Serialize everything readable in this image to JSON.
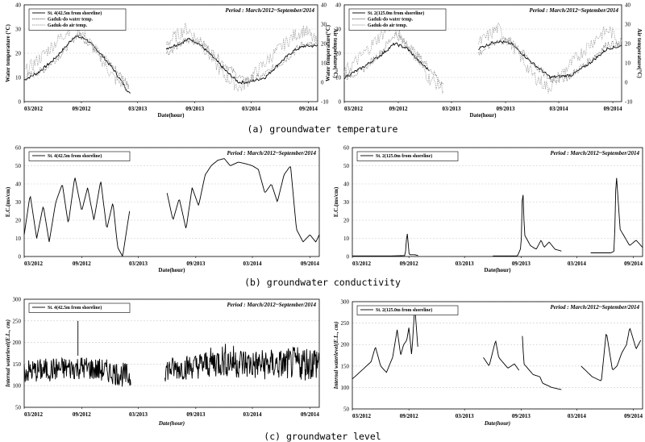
{
  "captions": [
    "(a) groundwater temperature",
    "(b) groundwater conductivity",
    "(c) groundwater level"
  ],
  "chart_data": [
    {
      "type": "line",
      "period_text": "Period : March/2012~September/2014",
      "xlabel": "Date(hour)",
      "ylabel": "Water temperature (°C)",
      "ylabel_right": "Air temperature(°C)",
      "x_ticks": [
        "03/2012",
        "09/2012",
        "03/2013",
        "09/2013",
        "03/2014",
        "09/2014"
      ],
      "ylim": [
        0,
        40
      ],
      "y_ticks": [
        0,
        10,
        20,
        30,
        40
      ],
      "ylim_right": [
        -10,
        40
      ],
      "y_ticks_right": [
        -10,
        0,
        10,
        20,
        30,
        40
      ],
      "grid": true,
      "legend": "top-left",
      "series": [
        {
          "name": "St. 4(42.5m from shoreline)",
          "style": "solid",
          "axis": "left",
          "segments": [
            {
              "x": [
                "2012-03-01",
                "2012-04-15",
                "2012-06-01",
                "2012-07-15",
                "2012-08-10",
                "2012-09-15",
                "2012-11-01",
                "2012-12-15",
                "2013-01-15",
                "2013-02-05"
              ],
              "y": [
                9,
                12,
                17,
                23,
                27,
                26,
                20,
                13,
                7,
                3
              ]
            },
            {
              "x": [
                "2013-06-01",
                "2013-07-15",
                "2013-08-15",
                "2013-09-15",
                "2013-11-01",
                "2013-12-15",
                "2014-01-20",
                "2014-02-20",
                "2014-04-15",
                "2014-06-01",
                "2014-07-15",
                "2014-08-20",
                "2014-10-01"
              ],
              "y": [
                22,
                24,
                26,
                24,
                18,
                12,
                8,
                8,
                10,
                16,
                21,
                23,
                23
              ]
            }
          ]
        },
        {
          "name": "Gaduk-do water temp.",
          "style": "dotted",
          "axis": "left",
          "segments": [
            {
              "x": [
                "2012-03-01",
                "2012-05-01",
                "2012-07-01",
                "2012-08-20",
                "2012-10-15",
                "2012-12-15",
                "2013-02-01"
              ],
              "y": [
                10,
                13,
                20,
                28,
                22,
                14,
                7
              ]
            },
            {
              "x": [
                "2013-06-01",
                "2013-08-01",
                "2013-09-20",
                "2013-12-01",
                "2014-02-01",
                "2014-04-01",
                "2014-06-15",
                "2014-08-15",
                "2014-10-01"
              ],
              "y": [
                20,
                25,
                25,
                16,
                9,
                10,
                17,
                24,
                23
              ]
            }
          ]
        },
        {
          "name": "Gaduk-do air temp.",
          "style": "dotted",
          "axis": "right",
          "segments": [
            {
              "x": [
                "2012-03-01",
                "2012-05-01",
                "2012-07-01",
                "2012-08-10",
                "2012-10-15",
                "2012-12-15",
                "2013-02-01"
              ],
              "y": [
                5,
                14,
                24,
                30,
                17,
                2,
                -3
              ]
            },
            {
              "x": [
                "2013-06-01",
                "2013-08-05",
                "2013-10-01",
                "2013-12-01",
                "2014-01-25",
                "2014-03-15",
                "2014-05-15",
                "2014-07-15",
                "2014-08-20",
                "2014-10-01"
              ],
              "y": [
                20,
                28,
                18,
                4,
                -3,
                5,
                15,
                24,
                27,
                20
              ]
            }
          ]
        }
      ]
    },
    {
      "type": "line",
      "period_text": "Period : March/2012~September/2014",
      "xlabel": "Date(hour)",
      "ylabel": "Water temperature(°C)",
      "ylabel_right": "Air temperature(°C)",
      "x_ticks": [
        "03/2012",
        "09/2012",
        "03/2013",
        "09/2013",
        "03/2014",
        "09/2014"
      ],
      "ylim": [
        0,
        40
      ],
      "y_ticks": [
        0,
        10,
        20,
        30,
        40
      ],
      "ylim_right": [
        -10,
        40
      ],
      "y_ticks_right": [
        -10,
        0,
        10,
        20,
        30,
        40
      ],
      "grid": true,
      "legend": "top-left",
      "series": [
        {
          "name": "St. 2(125.0m from shoreline)",
          "style": "solid",
          "axis": "left",
          "segments": [
            {
              "x": [
                "2012-03-01",
                "2012-05-01",
                "2012-07-01",
                "2012-08-20",
                "2012-10-01",
                "2012-11-15",
                "2012-12-15"
              ],
              "y": [
                10,
                14,
                19,
                24,
                22,
                16,
                13
              ]
            },
            {
              "x": [
                "2013-06-01",
                "2013-08-01",
                "2013-09-20",
                "2013-12-01",
                "2014-02-01",
                "2014-04-15",
                "2014-06-15",
                "2014-08-15",
                "2014-10-01"
              ],
              "y": [
                22,
                25,
                24,
                16,
                10,
                11,
                16,
                22,
                23
              ]
            }
          ]
        },
        {
          "name": "Gaduk-do water temp.",
          "style": "dotted",
          "axis": "left",
          "segments": [
            {
              "x": [
                "2012-03-01",
                "2012-05-01",
                "2012-07-01",
                "2012-08-20",
                "2012-10-15",
                "2012-12-15",
                "2013-02-01"
              ],
              "y": [
                10,
                13,
                20,
                28,
                22,
                14,
                7
              ]
            },
            {
              "x": [
                "2013-06-01",
                "2013-08-01",
                "2013-09-20",
                "2013-12-01",
                "2014-02-01",
                "2014-04-01",
                "2014-06-15",
                "2014-08-15",
                "2014-10-01"
              ],
              "y": [
                20,
                25,
                25,
                16,
                9,
                10,
                17,
                24,
                23
              ]
            }
          ]
        },
        {
          "name": "Gaduk-do air temp.",
          "style": "dotted",
          "axis": "right",
          "segments": [
            {
              "x": [
                "2012-03-01",
                "2012-05-01",
                "2012-07-01",
                "2012-08-10",
                "2012-10-15",
                "2012-12-15",
                "2013-02-01"
              ],
              "y": [
                5,
                14,
                24,
                30,
                17,
                2,
                -3
              ]
            },
            {
              "x": [
                "2013-06-01",
                "2013-08-05",
                "2013-10-01",
                "2013-12-01",
                "2014-01-25",
                "2014-03-15",
                "2014-05-15",
                "2014-07-15",
                "2014-08-20",
                "2014-10-01"
              ],
              "y": [
                20,
                28,
                18,
                4,
                -3,
                5,
                15,
                24,
                27,
                20
              ]
            }
          ]
        }
      ]
    },
    {
      "type": "line",
      "period_text": "Period : March/2012~September/2014",
      "xlabel": "Date(hour)",
      "ylabel": "E.C.(ms/cm)",
      "x_ticks": [
        "03/2012",
        "09/2012",
        "03/2013",
        "09/2013",
        "03/2014",
        "09/2014"
      ],
      "ylim": [
        0,
        60
      ],
      "y_ticks": [
        0,
        10,
        20,
        30,
        40,
        50,
        60
      ],
      "grid": true,
      "legend": "top-left",
      "series": [
        {
          "name": "St. 4(42.5m from shoreline)",
          "style": "solid",
          "segments": [
            {
              "x": [
                "2012-03-01",
                "2012-03-20",
                "2012-04-10",
                "2012-05-01",
                "2012-05-20",
                "2012-06-10",
                "2012-07-01",
                "2012-07-20",
                "2012-08-10",
                "2012-09-01",
                "2012-09-20",
                "2012-10-10",
                "2012-11-01",
                "2012-11-20",
                "2012-12-10",
                "2012-12-25",
                "2013-01-10",
                "2013-02-01"
              ],
              "y": [
                12,
                34,
                10,
                28,
                8,
                30,
                40,
                18,
                44,
                25,
                38,
                20,
                42,
                15,
                30,
                5,
                0,
                25
              ]
            },
            {
              "x": [
                "2013-06-01",
                "2013-06-20",
                "2013-07-10",
                "2013-08-01",
                "2013-08-20",
                "2013-09-10",
                "2013-10-01",
                "2013-10-20",
                "2013-11-10",
                "2013-12-01",
                "2013-12-20",
                "2014-01-15",
                "2014-02-10",
                "2014-03-01",
                "2014-03-20",
                "2014-04-10",
                "2014-05-01",
                "2014-05-20",
                "2014-06-10",
                "2014-07-01",
                "2014-07-20",
                "2014-08-10",
                "2014-09-01",
                "2014-09-20",
                "2014-10-01"
              ],
              "y": [
                35,
                20,
                32,
                15,
                38,
                28,
                45,
                50,
                53,
                54,
                50,
                52,
                51,
                50,
                48,
                35,
                40,
                30,
                45,
                50,
                15,
                8,
                12,
                8,
                12
              ]
            }
          ]
        }
      ]
    },
    {
      "type": "line",
      "period_text": "Period : March/2012~September/2014",
      "xlabel": "Date(hour)",
      "ylabel": "E.C.(ms/cm)",
      "x_ticks": [
        "03/2012",
        "09/2012",
        "03/2013",
        "09/2013",
        "03/2014",
        "09/2014"
      ],
      "ylim": [
        0,
        60
      ],
      "y_ticks": [
        0,
        10,
        20,
        30,
        40,
        50,
        60
      ],
      "grid": true,
      "legend": "top-left",
      "series": [
        {
          "name": "St. 2(125.0m from shoreline)",
          "style": "solid",
          "segments": [
            {
              "x": [
                "2012-03-01",
                "2012-07-01",
                "2012-08-20",
                "2012-08-26",
                "2012-09-02",
                "2012-09-20",
                "2012-10-01"
              ],
              "y": [
                0.3,
                0.3,
                0.5,
                14,
                1,
                1,
                0.5
              ]
            },
            {
              "x": [
                "2013-06-01",
                "2013-08-20",
                "2013-09-01",
                "2013-09-06",
                "2013-09-12",
                "2013-10-01",
                "2013-10-20",
                "2013-11-05",
                "2013-11-15",
                "2013-12-01",
                "2013-12-20",
                "2014-01-10"
              ],
              "y": [
                0.3,
                0.3,
                5,
                41,
                12,
                6,
                4,
                9,
                5,
                8,
                4,
                3
              ]
            },
            {
              "x": [
                "2014-04-15",
                "2014-06-20",
                "2014-07-01",
                "2014-07-07",
                "2014-07-20",
                "2014-08-20",
                "2014-09-10",
                "2014-10-01"
              ],
              "y": [
                2,
                2,
                3,
                47,
                15,
                6,
                9,
                5
              ]
            }
          ]
        }
      ]
    },
    {
      "type": "line",
      "period_text": "Period : March/2012~September/2014",
      "xlabel": "Date(hour)",
      "ylabel": "Internal waterlevel(E.L., cm)",
      "x_ticks": [
        "03/2012",
        "09/2012",
        "03/2013",
        "09/2013",
        "03/2014",
        "09/2014"
      ],
      "ylim": [
        50,
        300
      ],
      "y_ticks": [
        50,
        100,
        150,
        200,
        250,
        300
      ],
      "grid": true,
      "legend": "top-left",
      "series": [
        {
          "name": "St. 4(42.5m from shoreline)",
          "style": "solid",
          "band": true,
          "segments": [
            {
              "x": [
                "2012-03-01",
                "2012-06-01",
                "2012-09-01",
                "2012-12-01",
                "2013-02-05"
              ],
              "low": [
                95,
                100,
                105,
                95,
                80
              ],
              "high": [
                160,
                165,
                170,
                160,
                150
              ],
              "spike": {
                "x": "2012-08-20",
                "y": 250
              }
            },
            {
              "x": [
                "2013-05-25",
                "2013-09-01",
                "2013-12-01",
                "2014-03-01",
                "2014-06-01",
                "2014-10-01"
              ],
              "low": [
                100,
                105,
                105,
                100,
                100,
                95
              ],
              "high": [
                165,
                175,
                200,
                185,
                185,
                200
              ]
            }
          ]
        }
      ]
    },
    {
      "type": "line",
      "period_text": "Period : March/2012~September/2014",
      "xlabel": "Date(hour)",
      "ylabel": "Internal waterlevel(E.L., cm)",
      "x_ticks": [
        "03/2012",
        "09/2012",
        "03/2013",
        "09/2013",
        "03/2014",
        "09/2014"
      ],
      "ylim": [
        50,
        300
      ],
      "y_ticks": [
        50,
        100,
        150,
        200,
        250,
        300
      ],
      "grid": true,
      "legend": "top-left",
      "series": [
        {
          "name": "St. 2(125.0m from shoreline)",
          "style": "solid",
          "segments": [
            {
              "x": [
                "2012-03-01",
                "2012-04-01",
                "2012-05-01",
                "2012-05-15",
                "2012-06-01",
                "2012-06-20",
                "2012-07-10",
                "2012-07-25",
                "2012-08-05",
                "2012-08-15",
                "2012-08-25",
                "2012-09-01",
                "2012-09-10",
                "2012-09-20",
                "2012-09-30"
              ],
              "y": [
                120,
                140,
                160,
                195,
                150,
                135,
                170,
                235,
                175,
                200,
                210,
                240,
                175,
                290,
                195
              ]
            },
            {
              "x": [
                "2013-05-01",
                "2013-05-20",
                "2013-06-10",
                "2013-06-20",
                "2013-07-20",
                "2013-08-10",
                "2013-08-25"
              ],
              "y": [
                170,
                150,
                210,
                170,
                145,
                155,
                140
              ]
            },
            {
              "x": [
                "2013-09-05",
                "2013-09-10",
                "2013-10-10",
                "2013-11-01",
                "2013-11-10",
                "2013-12-10",
                "2014-01-10"
              ],
              "y": [
                220,
                155,
                130,
                125,
                110,
                100,
                95
              ]
            },
            {
              "x": [
                "2014-03-15",
                "2014-04-20",
                "2014-05-20",
                "2014-06-05",
                "2014-06-25",
                "2014-07-10",
                "2014-07-25",
                "2014-08-10",
                "2014-08-20",
                "2014-09-10",
                "2014-09-25"
              ],
              "y": [
                150,
                125,
                115,
                230,
                140,
                150,
                180,
                200,
                240,
                190,
                210
              ]
            }
          ]
        }
      ]
    }
  ]
}
